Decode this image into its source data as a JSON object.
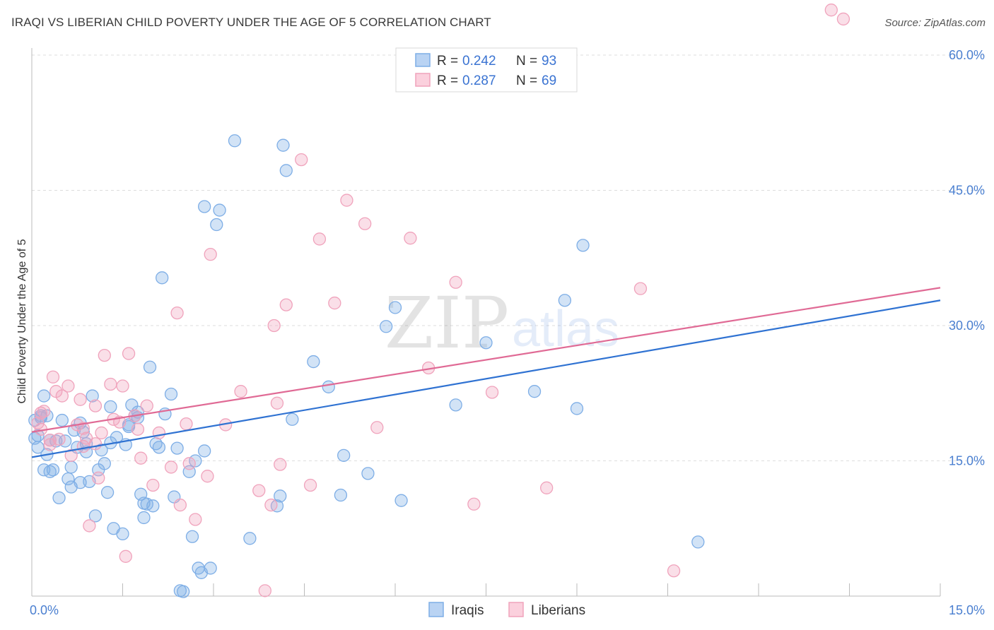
{
  "header": {
    "title": "IRAQI VS LIBERIAN CHILD POVERTY UNDER THE AGE OF 5 CORRELATION CHART",
    "source": "Source: ZipAtlas.com"
  },
  "watermark": {
    "zip": "ZIP",
    "atlas": "atlas"
  },
  "legend": {
    "r_label": "R =",
    "n_label": "N =",
    "rows": [
      {
        "r": "0.242",
        "n": "93"
      },
      {
        "r": "0.287",
        "n": "69"
      }
    ]
  },
  "bottom_legend": [
    "Iraqis",
    "Liberians"
  ],
  "chart_data": {
    "type": "scatter",
    "title": "IRAQI VS LIBERIAN CHILD POVERTY UNDER THE AGE OF 5 CORRELATION CHART",
    "xlabel": "",
    "ylabel": "Child Poverty Under the Age of 5",
    "xlim": [
      0,
      15
    ],
    "ylim": [
      0,
      60
    ],
    "x_ticks": [
      {
        "value": 0,
        "label": "0.0%"
      },
      {
        "value": 15,
        "label": "15.0%"
      }
    ],
    "y_ticks": [
      {
        "value": 15,
        "label": "15.0%"
      },
      {
        "value": 30,
        "label": "30.0%"
      },
      {
        "value": 45,
        "label": "45.0%"
      },
      {
        "value": 60,
        "label": "60.0%"
      }
    ],
    "grid": true,
    "legend_position": "top-center",
    "colors": {
      "iraqis": "#7eaee6",
      "liberians": "#f0a3bc",
      "iraqis_line": "#2f72d2",
      "liberians_line": "#e06a95"
    },
    "series": [
      {
        "name": "Iraqis",
        "trend": {
          "x0": 0,
          "y0": 15.4,
          "x1": 15,
          "y1": 32.8
        },
        "points": [
          [
            0.05,
            19.5
          ],
          [
            0.05,
            17.5
          ],
          [
            0.1,
            16.5
          ],
          [
            0.1,
            17.8
          ],
          [
            0.15,
            20
          ],
          [
            0.15,
            19.8
          ],
          [
            0.2,
            22.2
          ],
          [
            0.2,
            14
          ],
          [
            0.25,
            15.7
          ],
          [
            0.25,
            20
          ],
          [
            0.3,
            17.3
          ],
          [
            0.3,
            13.8
          ],
          [
            0.35,
            14
          ],
          [
            0.4,
            17.2
          ],
          [
            0.45,
            10.9
          ],
          [
            0.5,
            19.5
          ],
          [
            0.55,
            17.2
          ],
          [
            0.6,
            13
          ],
          [
            0.65,
            14.3
          ],
          [
            0.65,
            12.1
          ],
          [
            0.7,
            18.4
          ],
          [
            0.75,
            16.5
          ],
          [
            0.8,
            12.6
          ],
          [
            0.8,
            19.2
          ],
          [
            0.85,
            18.2
          ],
          [
            0.9,
            16.9
          ],
          [
            0.9,
            16
          ],
          [
            0.95,
            12.7
          ],
          [
            1.0,
            22.2
          ],
          [
            1.05,
            8.9
          ],
          [
            1.1,
            14
          ],
          [
            1.15,
            16.2
          ],
          [
            1.2,
            14.7
          ],
          [
            1.25,
            11.5
          ],
          [
            1.3,
            17
          ],
          [
            1.3,
            21
          ],
          [
            1.35,
            7.5
          ],
          [
            1.4,
            17.6
          ],
          [
            1.5,
            6.9
          ],
          [
            1.55,
            16.8
          ],
          [
            1.6,
            19
          ],
          [
            1.6,
            18.8
          ],
          [
            1.65,
            21.2
          ],
          [
            1.7,
            20
          ],
          [
            1.75,
            20.4
          ],
          [
            1.75,
            19.8
          ],
          [
            1.8,
            11.3
          ],
          [
            1.85,
            8.7
          ],
          [
            1.85,
            10.3
          ],
          [
            1.9,
            10.2
          ],
          [
            1.95,
            25.4
          ],
          [
            2.0,
            10
          ],
          [
            2.05,
            16.9
          ],
          [
            2.1,
            16.5
          ],
          [
            2.15,
            35.3
          ],
          [
            2.2,
            20.2
          ],
          [
            2.3,
            22.4
          ],
          [
            2.35,
            11
          ],
          [
            2.4,
            16.4
          ],
          [
            2.45,
            0.6
          ],
          [
            2.5,
            0.5
          ],
          [
            2.6,
            13.8
          ],
          [
            2.65,
            6.6
          ],
          [
            2.7,
            15
          ],
          [
            2.75,
            3.1
          ],
          [
            2.8,
            2.6
          ],
          [
            2.85,
            43.2
          ],
          [
            2.85,
            16.1
          ],
          [
            2.95,
            3.1
          ],
          [
            3.05,
            41.2
          ],
          [
            3.1,
            42.8
          ],
          [
            3.35,
            50.5
          ],
          [
            3.6,
            6.4
          ],
          [
            4.05,
            10
          ],
          [
            4.1,
            11.1
          ],
          [
            4.15,
            50
          ],
          [
            4.2,
            47.2
          ],
          [
            4.3,
            19.6
          ],
          [
            4.65,
            26
          ],
          [
            4.9,
            23.2
          ],
          [
            5.1,
            11.2
          ],
          [
            5.15,
            15.6
          ],
          [
            5.55,
            13.6
          ],
          [
            5.85,
            29.9
          ],
          [
            6.0,
            32
          ],
          [
            6.1,
            10.6
          ],
          [
            7.0,
            21.2
          ],
          [
            7.5,
            28.1
          ],
          [
            8.3,
            22.7
          ],
          [
            8.8,
            32.8
          ],
          [
            9.0,
            20.8
          ],
          [
            9.1,
            38.9
          ],
          [
            11.0,
            6
          ]
        ]
      },
      {
        "name": "Liberians",
        "trend": {
          "x0": 0,
          "y0": 18.2,
          "x1": 15,
          "y1": 34.2
        },
        "points": [
          [
            0.1,
            19.2
          ],
          [
            0.15,
            18.5
          ],
          [
            0.15,
            20.3
          ],
          [
            0.2,
            20.5
          ],
          [
            0.3,
            17.3
          ],
          [
            0.3,
            16.8
          ],
          [
            0.35,
            24.3
          ],
          [
            0.4,
            22.7
          ],
          [
            0.45,
            17.4
          ],
          [
            0.5,
            22.2
          ],
          [
            0.6,
            23.3
          ],
          [
            0.65,
            15.6
          ],
          [
            0.75,
            19
          ],
          [
            0.8,
            21.8
          ],
          [
            0.85,
            18.6
          ],
          [
            0.85,
            16.6
          ],
          [
            0.9,
            17.5
          ],
          [
            0.95,
            7.8
          ],
          [
            1.05,
            21.1
          ],
          [
            1.05,
            16.9
          ],
          [
            1.1,
            13.1
          ],
          [
            1.15,
            18.1
          ],
          [
            1.2,
            26.7
          ],
          [
            1.3,
            23.5
          ],
          [
            1.35,
            19.6
          ],
          [
            1.45,
            19.3
          ],
          [
            1.5,
            23.3
          ],
          [
            1.55,
            4.4
          ],
          [
            1.6,
            26.9
          ],
          [
            1.7,
            20
          ],
          [
            1.75,
            18.5
          ],
          [
            1.8,
            15.3
          ],
          [
            1.9,
            21.1
          ],
          [
            2.0,
            12.3
          ],
          [
            2.1,
            18.1
          ],
          [
            2.3,
            14.3
          ],
          [
            2.4,
            31.4
          ],
          [
            2.45,
            10.1
          ],
          [
            2.55,
            19.1
          ],
          [
            2.6,
            14.7
          ],
          [
            2.7,
            8.5
          ],
          [
            2.9,
            13.3
          ],
          [
            2.95,
            37.9
          ],
          [
            3.2,
            19
          ],
          [
            3.45,
            22.7
          ],
          [
            3.75,
            11.7
          ],
          [
            3.85,
            0.6
          ],
          [
            3.95,
            10.1
          ],
          [
            4.0,
            30
          ],
          [
            4.05,
            21.4
          ],
          [
            4.1,
            14.6
          ],
          [
            4.2,
            32.3
          ],
          [
            4.45,
            48.4
          ],
          [
            4.6,
            12.3
          ],
          [
            4.75,
            39.6
          ],
          [
            5.0,
            32.5
          ],
          [
            5.2,
            43.9
          ],
          [
            5.5,
            41.3
          ],
          [
            5.7,
            18.7
          ],
          [
            6.25,
            39.7
          ],
          [
            6.55,
            25.3
          ],
          [
            7.0,
            34.8
          ],
          [
            7.3,
            10.2
          ],
          [
            7.6,
            22.6
          ],
          [
            8.5,
            12
          ],
          [
            10.05,
            34.1
          ],
          [
            10.6,
            2.8
          ],
          [
            13.2,
            65
          ],
          [
            13.4,
            64
          ]
        ]
      }
    ]
  }
}
